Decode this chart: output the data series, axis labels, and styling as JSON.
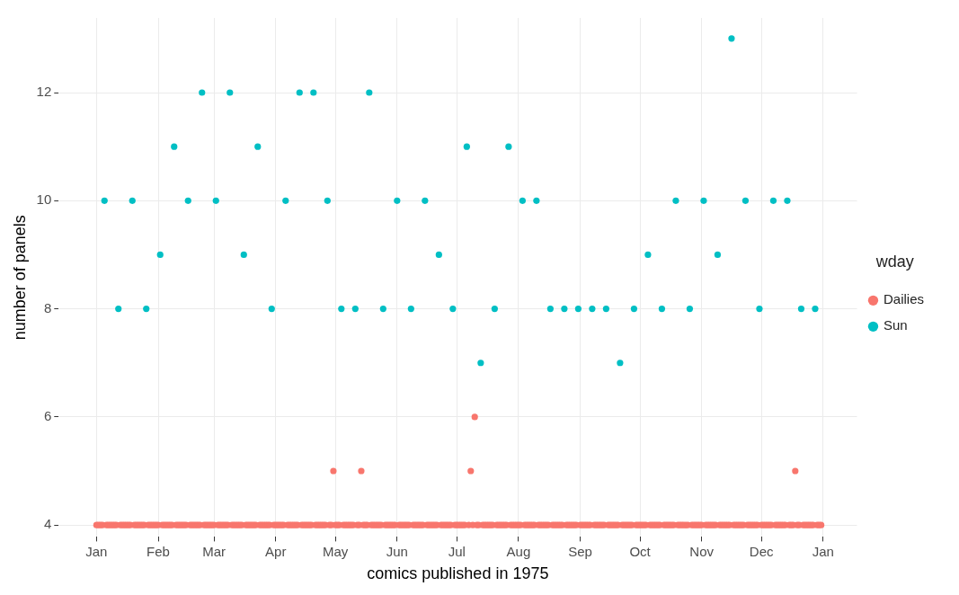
{
  "chart_data": {
    "type": "scatter",
    "xlabel": "comics published in 1975",
    "ylabel": "number of panels",
    "legend_title": "wday",
    "legend": "right",
    "grid": true,
    "marker": "circle",
    "xlim": [
      "1974-12-13",
      "1976-01-18"
    ],
    "ylim": [
      3.78,
      13.38
    ],
    "yticks": [
      4,
      6,
      8,
      10,
      12
    ],
    "xticks": [
      {
        "value": "1975-01-01",
        "label": "Jan"
      },
      {
        "value": "1975-02-01",
        "label": "Feb"
      },
      {
        "value": "1975-03-01",
        "label": "Mar"
      },
      {
        "value": "1975-04-01",
        "label": "Apr"
      },
      {
        "value": "1975-05-01",
        "label": "May"
      },
      {
        "value": "1975-06-01",
        "label": "Jun"
      },
      {
        "value": "1975-07-01",
        "label": "Jul"
      },
      {
        "value": "1975-08-01",
        "label": "Aug"
      },
      {
        "value": "1975-09-01",
        "label": "Sep"
      },
      {
        "value": "1975-10-01",
        "label": "Oct"
      },
      {
        "value": "1975-11-01",
        "label": "Nov"
      },
      {
        "value": "1975-12-01",
        "label": "Dec"
      },
      {
        "value": "1976-01-01",
        "label": "Jan"
      }
    ],
    "series": [
      {
        "name": "Dailies",
        "color": "#f8766d",
        "x": [
          "1975-01-01",
          "1975-01-02",
          "1975-01-03",
          "1975-01-04",
          "1975-01-06",
          "1975-01-07",
          "1975-01-08",
          "1975-01-09",
          "1975-01-10",
          "1975-01-11",
          "1975-01-13",
          "1975-01-14",
          "1975-01-15",
          "1975-01-16",
          "1975-01-17",
          "1975-01-18",
          "1975-01-20",
          "1975-01-21",
          "1975-01-22",
          "1975-01-23",
          "1975-01-24",
          "1975-01-25",
          "1975-01-27",
          "1975-01-28",
          "1975-01-29",
          "1975-01-30",
          "1975-01-31",
          "1975-02-01",
          "1975-02-03",
          "1975-02-04",
          "1975-02-05",
          "1975-02-06",
          "1975-02-07",
          "1975-02-08",
          "1975-02-10",
          "1975-02-11",
          "1975-02-12",
          "1975-02-13",
          "1975-02-14",
          "1975-02-15",
          "1975-02-17",
          "1975-02-18",
          "1975-02-19",
          "1975-02-20",
          "1975-02-21",
          "1975-02-22",
          "1975-02-24",
          "1975-02-25",
          "1975-02-26",
          "1975-02-27",
          "1975-02-28",
          "1975-03-01",
          "1975-03-03",
          "1975-03-04",
          "1975-03-05",
          "1975-03-06",
          "1975-03-07",
          "1975-03-08",
          "1975-03-10",
          "1975-03-11",
          "1975-03-12",
          "1975-03-13",
          "1975-03-14",
          "1975-03-15",
          "1975-03-17",
          "1975-03-18",
          "1975-03-19",
          "1975-03-20",
          "1975-03-21",
          "1975-03-22",
          "1975-03-24",
          "1975-03-25",
          "1975-03-26",
          "1975-03-27",
          "1975-03-28",
          "1975-03-29",
          "1975-03-31",
          "1975-04-01",
          "1975-04-02",
          "1975-04-03",
          "1975-04-04",
          "1975-04-05",
          "1975-04-07",
          "1975-04-08",
          "1975-04-09",
          "1975-04-10",
          "1975-04-11",
          "1975-04-12",
          "1975-04-14",
          "1975-04-15",
          "1975-04-16",
          "1975-04-17",
          "1975-04-18",
          "1975-04-19",
          "1975-04-21",
          "1975-04-22",
          "1975-04-23",
          "1975-04-24",
          "1975-04-25",
          "1975-04-26",
          "1975-04-28",
          "1975-04-29",
          "1975-04-30",
          "1975-05-01",
          "1975-05-02",
          "1975-05-03",
          "1975-05-05",
          "1975-05-06",
          "1975-05-07",
          "1975-05-08",
          "1975-05-09",
          "1975-05-10",
          "1975-05-12",
          "1975-05-13",
          "1975-05-14",
          "1975-05-15",
          "1975-05-16",
          "1975-05-17",
          "1975-05-19",
          "1975-05-20",
          "1975-05-21",
          "1975-05-22",
          "1975-05-23",
          "1975-05-24",
          "1975-05-26",
          "1975-05-27",
          "1975-05-28",
          "1975-05-29",
          "1975-05-30",
          "1975-05-31",
          "1975-06-02",
          "1975-06-03",
          "1975-06-04",
          "1975-06-05",
          "1975-06-06",
          "1975-06-07",
          "1975-06-09",
          "1975-06-10",
          "1975-06-11",
          "1975-06-12",
          "1975-06-13",
          "1975-06-14",
          "1975-06-16",
          "1975-06-17",
          "1975-06-18",
          "1975-06-19",
          "1975-06-20",
          "1975-06-21",
          "1975-06-23",
          "1975-06-24",
          "1975-06-25",
          "1975-06-26",
          "1975-06-27",
          "1975-06-28",
          "1975-06-30",
          "1975-07-01",
          "1975-07-02",
          "1975-07-03",
          "1975-07-04",
          "1975-07-05",
          "1975-07-07",
          "1975-07-08",
          "1975-07-09",
          "1975-07-10",
          "1975-07-11",
          "1975-07-12",
          "1975-07-14",
          "1975-07-15",
          "1975-07-16",
          "1975-07-17",
          "1975-07-18",
          "1975-07-19",
          "1975-07-21",
          "1975-07-22",
          "1975-07-23",
          "1975-07-24",
          "1975-07-25",
          "1975-07-26",
          "1975-07-28",
          "1975-07-29",
          "1975-07-30",
          "1975-07-31",
          "1975-08-01",
          "1975-08-02",
          "1975-08-04",
          "1975-08-05",
          "1975-08-06",
          "1975-08-07",
          "1975-08-08",
          "1975-08-09",
          "1975-08-11",
          "1975-08-12",
          "1975-08-13",
          "1975-08-14",
          "1975-08-15",
          "1975-08-16",
          "1975-08-18",
          "1975-08-19",
          "1975-08-20",
          "1975-08-21",
          "1975-08-22",
          "1975-08-23",
          "1975-08-25",
          "1975-08-26",
          "1975-08-27",
          "1975-08-28",
          "1975-08-29",
          "1975-08-30",
          "1975-09-01",
          "1975-09-02",
          "1975-09-03",
          "1975-09-04",
          "1975-09-05",
          "1975-09-06",
          "1975-09-08",
          "1975-09-09",
          "1975-09-10",
          "1975-09-11",
          "1975-09-12",
          "1975-09-13",
          "1975-09-15",
          "1975-09-16",
          "1975-09-17",
          "1975-09-18",
          "1975-09-19",
          "1975-09-20",
          "1975-09-22",
          "1975-09-23",
          "1975-09-24",
          "1975-09-25",
          "1975-09-26",
          "1975-09-27",
          "1975-09-29",
          "1975-09-30",
          "1975-10-01",
          "1975-10-02",
          "1975-10-03",
          "1975-10-04",
          "1975-10-06",
          "1975-10-07",
          "1975-10-08",
          "1975-10-09",
          "1975-10-10",
          "1975-10-11",
          "1975-10-13",
          "1975-10-14",
          "1975-10-15",
          "1975-10-16",
          "1975-10-17",
          "1975-10-18",
          "1975-10-20",
          "1975-10-21",
          "1975-10-22",
          "1975-10-23",
          "1975-10-24",
          "1975-10-25",
          "1975-10-27",
          "1975-10-28",
          "1975-10-29",
          "1975-10-30",
          "1975-10-31",
          "1975-11-01",
          "1975-11-03",
          "1975-11-04",
          "1975-11-05",
          "1975-11-06",
          "1975-11-07",
          "1975-11-08",
          "1975-11-10",
          "1975-11-11",
          "1975-11-12",
          "1975-11-13",
          "1975-11-14",
          "1975-11-15",
          "1975-11-17",
          "1975-11-18",
          "1975-11-19",
          "1975-11-20",
          "1975-11-21",
          "1975-11-22",
          "1975-11-24",
          "1975-11-25",
          "1975-11-26",
          "1975-11-27",
          "1975-11-28",
          "1975-11-29",
          "1975-12-01",
          "1975-12-02",
          "1975-12-03",
          "1975-12-04",
          "1975-12-05",
          "1975-12-06",
          "1975-12-08",
          "1975-12-09",
          "1975-12-10",
          "1975-12-11",
          "1975-12-12",
          "1975-12-13",
          "1975-12-15",
          "1975-12-16",
          "1975-12-17",
          "1975-12-18",
          "1975-12-19",
          "1975-12-20",
          "1975-12-22",
          "1975-12-23",
          "1975-12-24",
          "1975-12-25",
          "1975-12-26",
          "1975-12-27",
          "1975-12-29",
          "1975-12-30",
          "1975-12-31"
        ],
        "values": [
          4,
          4,
          4,
          4,
          4,
          4,
          4,
          4,
          4,
          4,
          4,
          4,
          4,
          4,
          4,
          4,
          4,
          4,
          4,
          4,
          4,
          4,
          4,
          4,
          4,
          4,
          4,
          4,
          4,
          4,
          4,
          4,
          4,
          4,
          4,
          4,
          4,
          4,
          4,
          4,
          4,
          4,
          4,
          4,
          4,
          4,
          4,
          4,
          4,
          4,
          4,
          4,
          4,
          4,
          4,
          4,
          4,
          4,
          4,
          4,
          4,
          4,
          4,
          4,
          4,
          4,
          4,
          4,
          4,
          4,
          4,
          4,
          4,
          4,
          4,
          4,
          4,
          4,
          4,
          4,
          4,
          4,
          4,
          4,
          4,
          4,
          4,
          4,
          4,
          4,
          4,
          4,
          4,
          4,
          4,
          4,
          4,
          4,
          4,
          4,
          4,
          4,
          5,
          4,
          4,
          4,
          4,
          4,
          4,
          4,
          4,
          4,
          4,
          4,
          5,
          4,
          4,
          4,
          4,
          4,
          4,
          4,
          4,
          4,
          4,
          4,
          4,
          4,
          4,
          4,
          4,
          4,
          4,
          4,
          4,
          4,
          4,
          4,
          4,
          4,
          4,
          4,
          4,
          4,
          4,
          4,
          4,
          4,
          4,
          4,
          4,
          4,
          4,
          4,
          4,
          4,
          4,
          4,
          4,
          4,
          4,
          5,
          4,
          6,
          4,
          4,
          4,
          4,
          4,
          4,
          4,
          4,
          4,
          4,
          4,
          4,
          4,
          4,
          4,
          4,
          4,
          4,
          4,
          4,
          4,
          4,
          4,
          4,
          4,
          4,
          4,
          4,
          4,
          4,
          4,
          4,
          4,
          4,
          4,
          4,
          4,
          4,
          4,
          4,
          4,
          4,
          4,
          4,
          4,
          4,
          4,
          4,
          4,
          4,
          4,
          4,
          4,
          4,
          4,
          4,
          4,
          4,
          4,
          4,
          4,
          4,
          4,
          4,
          4,
          4,
          4,
          4,
          4,
          4,
          4,
          4,
          4,
          4,
          4,
          4,
          4,
          4,
          4,
          4,
          4,
          4,
          4,
          4,
          4,
          4,
          4,
          4,
          4,
          4,
          4,
          4,
          4,
          4,
          4,
          4,
          4,
          4,
          4,
          4,
          4,
          4,
          4,
          4,
          4,
          4,
          4,
          4,
          4,
          4,
          4,
          4,
          4,
          4,
          4,
          4,
          4,
          4,
          4,
          4,
          4,
          4,
          4,
          4,
          4,
          4,
          4,
          4,
          4,
          4,
          4,
          4,
          4,
          4,
          4,
          4,
          4,
          5,
          4,
          4,
          4,
          4,
          4,
          4,
          4,
          4,
          4,
          4,
          4
        ]
      },
      {
        "name": "Sun",
        "color": "#00bfc4",
        "x": [
          "1975-01-05",
          "1975-01-12",
          "1975-01-19",
          "1975-01-26",
          "1975-02-02",
          "1975-02-09",
          "1975-02-16",
          "1975-02-23",
          "1975-03-02",
          "1975-03-09",
          "1975-03-16",
          "1975-03-23",
          "1975-03-30",
          "1975-04-06",
          "1975-04-13",
          "1975-04-20",
          "1975-04-27",
          "1975-05-04",
          "1975-05-11",
          "1975-05-18",
          "1975-05-25",
          "1975-06-01",
          "1975-06-08",
          "1975-06-15",
          "1975-06-22",
          "1975-06-29",
          "1975-07-06",
          "1975-07-13",
          "1975-07-20",
          "1975-07-27",
          "1975-08-03",
          "1975-08-10",
          "1975-08-17",
          "1975-08-24",
          "1975-08-31",
          "1975-09-07",
          "1975-09-14",
          "1975-09-21",
          "1975-09-28",
          "1975-10-05",
          "1975-10-12",
          "1975-10-19",
          "1975-10-26",
          "1975-11-02",
          "1975-11-09",
          "1975-11-16",
          "1975-11-23",
          "1975-11-30",
          "1975-12-07",
          "1975-12-14",
          "1975-12-21",
          "1975-12-28"
        ],
        "values": [
          10,
          8,
          10,
          8,
          9,
          11,
          10,
          12,
          10,
          12,
          9,
          11,
          8,
          10,
          12,
          12,
          10,
          8,
          8,
          12,
          8,
          10,
          8,
          10,
          9,
          8,
          11,
          7,
          8,
          11,
          10,
          10,
          8,
          8,
          8,
          8,
          8,
          7,
          8,
          9,
          8,
          10,
          8,
          10,
          9,
          13,
          10,
          8,
          10,
          10,
          8,
          8
        ]
      }
    ]
  }
}
